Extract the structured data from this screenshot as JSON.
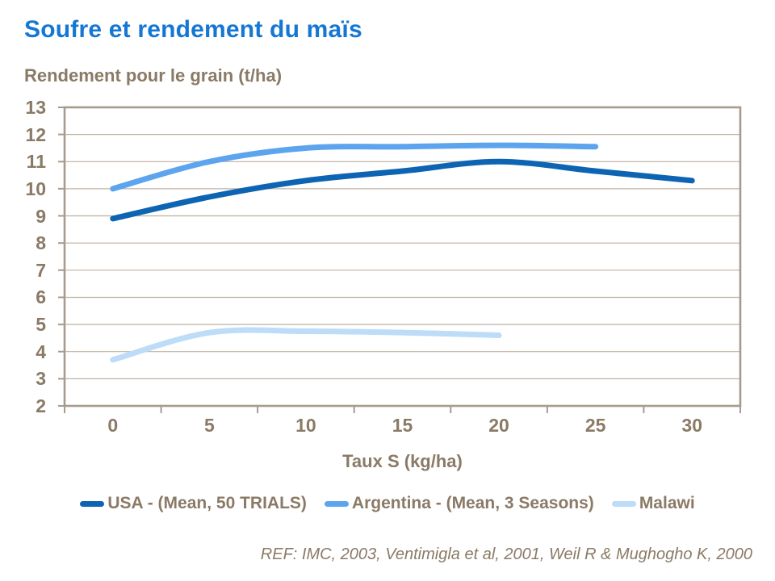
{
  "slide": {
    "title": "Soufre et rendement du maïs",
    "y_axis_title": "Rendement pour le grain (t/ha)",
    "x_axis_title": "Taux S (kg/ha)",
    "reference": "REF: IMC,  2003, Ventimigla et al, 2001, Weil R & Mughogho K, 2000"
  },
  "colors": {
    "title_blue": "#1577D3",
    "text_brown": "#8A7A66",
    "grid_line": "#BDB1A3",
    "axis_frame": "#A69B8D"
  },
  "chart_data": {
    "type": "line",
    "title": "Soufre et rendement du maïs",
    "ylabel": "Rendement pour le grain (t/ha)",
    "xlabel": "Taux S (kg/ha)",
    "x_tick_labels": [
      "0",
      "5",
      "10",
      "15",
      "20",
      "25",
      "30"
    ],
    "y_tick_labels": [
      "2",
      "3",
      "4",
      "5",
      "6",
      "7",
      "8",
      "9",
      "10",
      "11",
      "12",
      "13"
    ],
    "ylim": [
      2,
      13
    ],
    "grid": "horizontal",
    "legend_position": "bottom",
    "series": [
      {
        "name": "USA - (Mean, 50 TRIALS)",
        "slug": "usa",
        "color": "#0D64B2",
        "x": [
          0,
          5,
          10,
          15,
          20,
          25,
          30
        ],
        "values": [
          8.9,
          9.7,
          10.3,
          10.65,
          11.0,
          10.65,
          10.3
        ]
      },
      {
        "name": "Argentina - (Mean, 3 Seasons)",
        "slug": "argentina",
        "color": "#5CA5EE",
        "x": [
          0,
          5,
          10,
          15,
          20,
          25
        ],
        "values": [
          10.0,
          11.0,
          11.5,
          11.55,
          11.6,
          11.55
        ]
      },
      {
        "name": "Malawi",
        "slug": "malawi",
        "color": "#BDDCF8",
        "x": [
          0,
          5,
          10,
          15,
          20
        ],
        "values": [
          3.7,
          4.7,
          4.75,
          4.7,
          4.6
        ]
      }
    ]
  }
}
